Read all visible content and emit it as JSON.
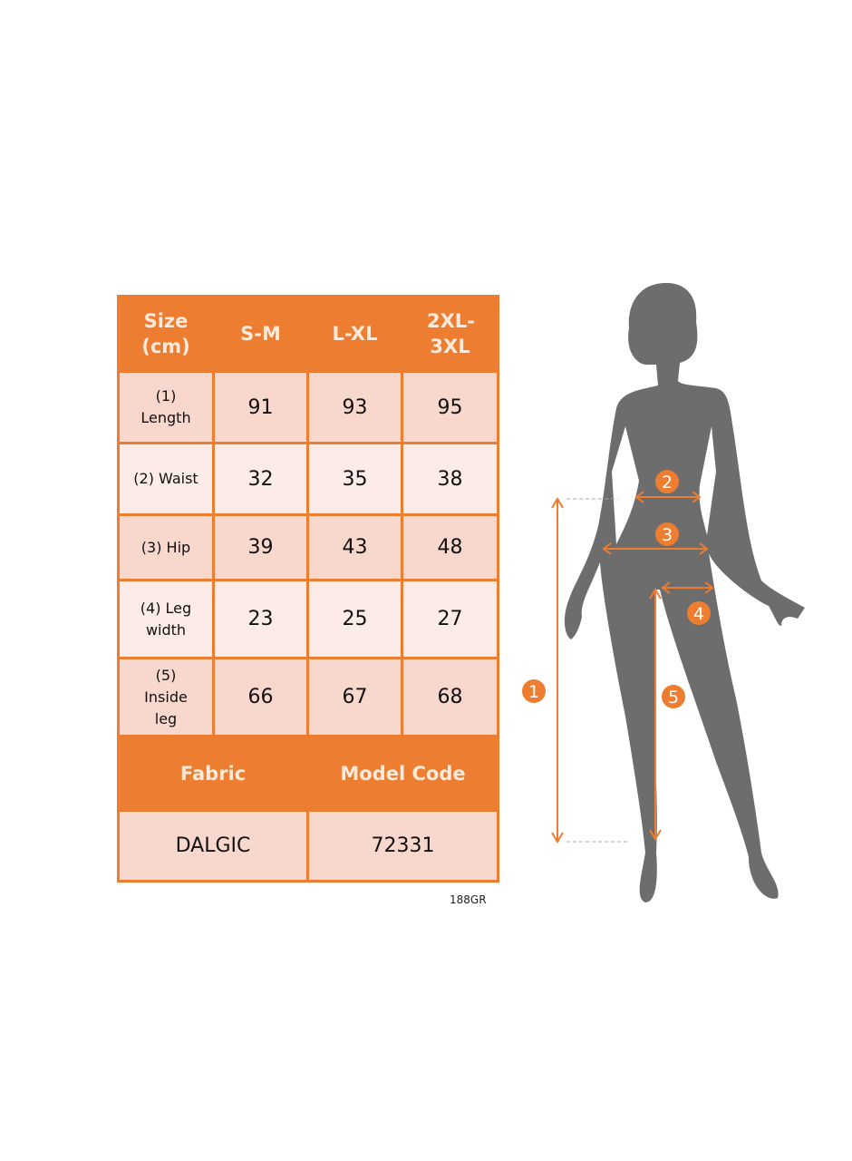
{
  "table": {
    "header": [
      "Size (cm)",
      "S-M",
      "L-XL",
      "2XL-3XL"
    ],
    "rows": [
      {
        "label": "(1) Length",
        "values": [
          "91",
          "93",
          "95"
        ]
      },
      {
        "label": "(2) Waist",
        "values": [
          "32",
          "35",
          "38"
        ]
      },
      {
        "label": "(3) Hip",
        "values": [
          "39",
          "43",
          "48"
        ]
      },
      {
        "label": "(4) Leg width",
        "values": [
          "23",
          "25",
          "27"
        ]
      },
      {
        "label": "(5) Inside leg",
        "values": [
          "66",
          "67",
          "68"
        ]
      }
    ],
    "footer_header": [
      "Fabric",
      "Model Code"
    ],
    "footer_values": [
      "DALGIC",
      "72331"
    ]
  },
  "product_code": "188GR",
  "figure": {
    "markers": [
      "1",
      "2",
      "3",
      "4",
      "5"
    ]
  },
  "colors": {
    "accent": "#ed7d31",
    "silhouette": "#6d6d6d",
    "cell_dark": "#f8d7cc",
    "cell_light": "#fcebe6"
  }
}
